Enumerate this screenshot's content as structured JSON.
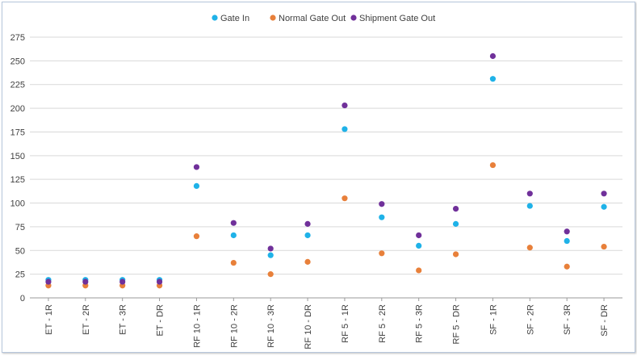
{
  "chart_data": {
    "type": "scatter",
    "title": "",
    "xlabel": "",
    "ylabel": "",
    "ylim": [
      0,
      275
    ],
    "yticks": [
      0,
      25,
      50,
      75,
      100,
      125,
      150,
      175,
      200,
      225,
      250,
      275
    ],
    "grid": true,
    "legend_position": "top-center",
    "categories": [
      "ET - 1R",
      "ET - 2R",
      "ET - 3R",
      "ET - DR",
      "RF 10 - 1R",
      "RF 10 - 2R",
      "RF 10 - 3R",
      "RF 10 - DR",
      "RF 5 - 1R",
      "RF 5 - 2R",
      "RF 5 - 3R",
      "RF 5 - DR",
      "SF - 1R",
      "SF - 2R",
      "SF - 3R",
      "SF - DR"
    ],
    "series": [
      {
        "name": "Gate In",
        "color": "#1fb2e8",
        "values": [
          19,
          19,
          19,
          19,
          118,
          66,
          45,
          66,
          178,
          85,
          55,
          78,
          231,
          97,
          60,
          96
        ]
      },
      {
        "name": "Normal Gate Out",
        "color": "#e8803a",
        "values": [
          13,
          13,
          13,
          13,
          65,
          37,
          25,
          38,
          105,
          47,
          29,
          46,
          140,
          53,
          33,
          54
        ]
      },
      {
        "name": "Shipment Gate Out",
        "color": "#70309a",
        "values": [
          17,
          17,
          17,
          17,
          138,
          79,
          52,
          78,
          203,
          99,
          66,
          94,
          255,
          110,
          70,
          110
        ]
      }
    ]
  }
}
